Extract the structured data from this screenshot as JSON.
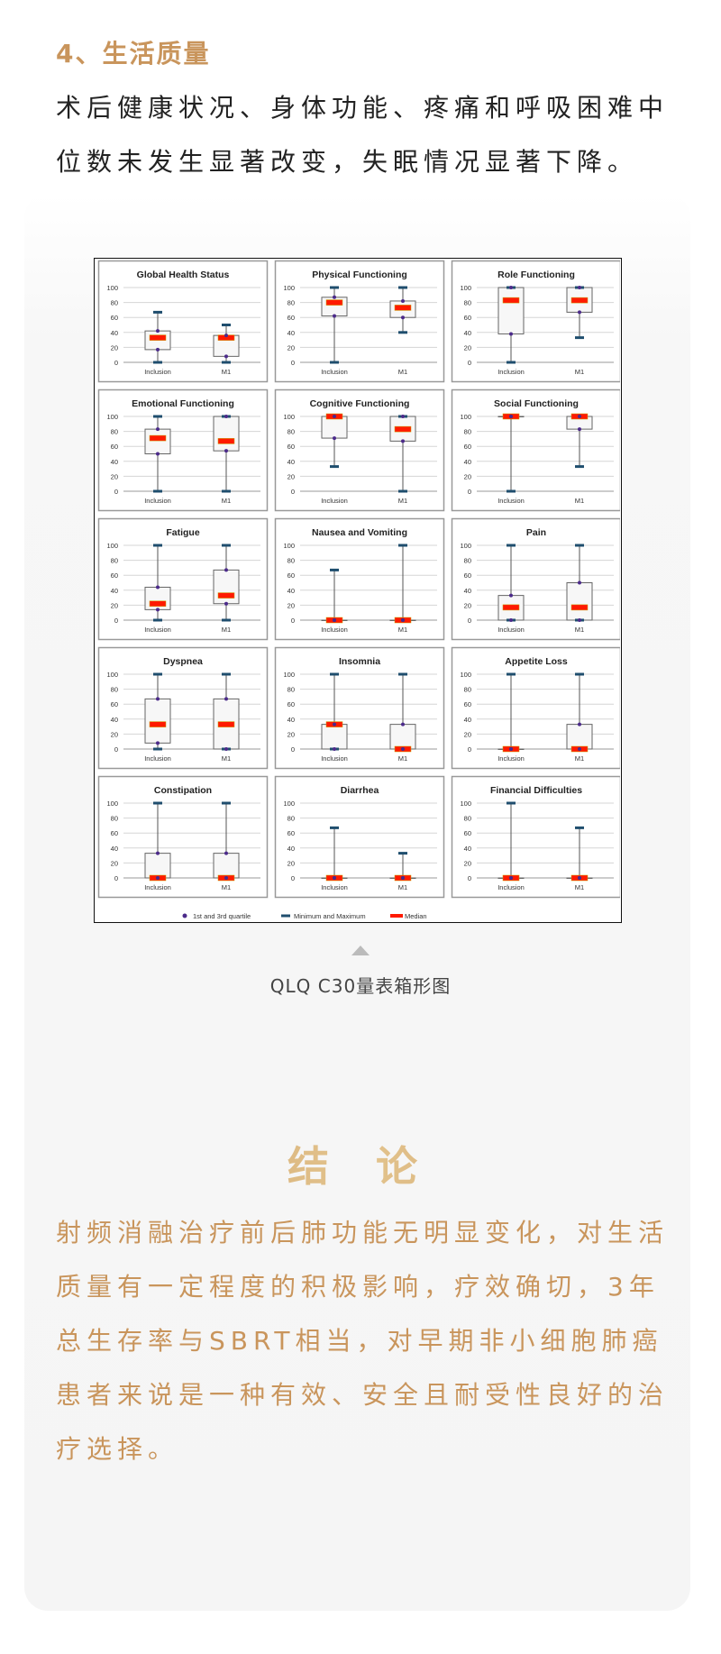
{
  "section": {
    "heading": "4、生活质量",
    "paragraph": "术后健康状况、身体功能、疼痛和呼吸困难中位数未发生显著改变，失眠情况显著下降。"
  },
  "figure": {
    "caption": "QLQ C30量表箱形图"
  },
  "conclusion": {
    "title": "结 论",
    "paragraph": "射频消融治疗前后肺功能无明显变化，对生活质量有一定程度的积极影响，疗效确切，3年总生存率与SBRT相当，对早期非小细胞肺癌患者来说是一种有效、安全且耐受性良好的治疗选择。"
  },
  "colors": {
    "accent": "#c9955c",
    "median": "#ff1a00",
    "quartile": "#4b2a8a",
    "minmax": "#1f4e6e"
  },
  "chart_data": {
    "type": "box",
    "categories": [
      "Inclusion",
      "M1"
    ],
    "ylim": [
      0,
      100
    ],
    "yticks": [
      0,
      20,
      40,
      60,
      80,
      100
    ],
    "grid": true,
    "legend": {
      "placement": "bottom",
      "entries": [
        "1st and 3rd quartile",
        "Minimum and Maximum",
        "Median"
      ]
    },
    "panels": [
      {
        "title": "Global Health Status",
        "boxes": [
          {
            "min": 0,
            "q1": 17,
            "median": 33,
            "q3": 42,
            "max": 67
          },
          {
            "min": 0,
            "q1": 8,
            "median": 33,
            "q3": 36,
            "max": 50
          }
        ]
      },
      {
        "title": "Physical Functioning",
        "boxes": [
          {
            "min": 0,
            "q1": 62,
            "median": 80,
            "q3": 87,
            "max": 100
          },
          {
            "min": 40,
            "q1": 60,
            "median": 73,
            "q3": 82,
            "max": 100
          }
        ]
      },
      {
        "title": "Role Functioning",
        "boxes": [
          {
            "min": 0,
            "q1": 38,
            "median": 83,
            "q3": 100,
            "max": 100
          },
          {
            "min": 33,
            "q1": 67,
            "median": 83,
            "q3": 100,
            "max": 100
          }
        ]
      },
      {
        "title": "Emotional Functioning",
        "boxes": [
          {
            "min": 0,
            "q1": 50,
            "median": 71,
            "q3": 83,
            "max": 100
          },
          {
            "min": 0,
            "q1": 54,
            "median": 67,
            "q3": 100,
            "max": 100
          }
        ]
      },
      {
        "title": "Cognitive Functioning",
        "boxes": [
          {
            "min": 33,
            "q1": 71,
            "median": 100,
            "q3": 100,
            "max": 100
          },
          {
            "min": 0,
            "q1": 67,
            "median": 83,
            "q3": 100,
            "max": 100
          }
        ]
      },
      {
        "title": "Social Functioning",
        "boxes": [
          {
            "min": 0,
            "q1": 100,
            "median": 100,
            "q3": 100,
            "max": 100
          },
          {
            "min": 33,
            "q1": 83,
            "median": 100,
            "q3": 100,
            "max": 100
          }
        ]
      },
      {
        "title": "Fatigue",
        "boxes": [
          {
            "min": 0,
            "q1": 14,
            "median": 22,
            "q3": 44,
            "max": 100
          },
          {
            "min": 0,
            "q1": 22,
            "median": 33,
            "q3": 67,
            "max": 100
          }
        ]
      },
      {
        "title": "Nausea and Vomiting",
        "boxes": [
          {
            "min": 0,
            "q1": 0,
            "median": 0,
            "q3": 0,
            "max": 67
          },
          {
            "min": 0,
            "q1": 0,
            "median": 0,
            "q3": 0,
            "max": 100
          }
        ]
      },
      {
        "title": "Pain",
        "boxes": [
          {
            "min": 0,
            "q1": 0,
            "median": 17,
            "q3": 33,
            "max": 100
          },
          {
            "min": 0,
            "q1": 0,
            "median": 17,
            "q3": 50,
            "max": 100
          }
        ]
      },
      {
        "title": "Dyspnea",
        "boxes": [
          {
            "min": 0,
            "q1": 8,
            "median": 33,
            "q3": 67,
            "max": 100
          },
          {
            "min": 0,
            "q1": 0,
            "median": 33,
            "q3": 67,
            "max": 100
          }
        ]
      },
      {
        "title": "Insomnia",
        "boxes": [
          {
            "min": 0,
            "q1": 0,
            "median": 33,
            "q3": 33,
            "max": 100
          },
          {
            "min": 0,
            "q1": 0,
            "median": 0,
            "q3": 33,
            "max": 100
          }
        ]
      },
      {
        "title": "Appetite Loss",
        "boxes": [
          {
            "min": 0,
            "q1": 0,
            "median": 0,
            "q3": 0,
            "max": 100
          },
          {
            "min": 0,
            "q1": 0,
            "median": 0,
            "q3": 33,
            "max": 100
          }
        ]
      },
      {
        "title": "Constipation",
        "boxes": [
          {
            "min": 0,
            "q1": 0,
            "median": 0,
            "q3": 33,
            "max": 100
          },
          {
            "min": 0,
            "q1": 0,
            "median": 0,
            "q3": 33,
            "max": 100
          }
        ]
      },
      {
        "title": "Diarrhea",
        "boxes": [
          {
            "min": 0,
            "q1": 0,
            "median": 0,
            "q3": 0,
            "max": 67
          },
          {
            "min": 0,
            "q1": 0,
            "median": 0,
            "q3": 0,
            "max": 33
          }
        ]
      },
      {
        "title": "Financial Difficulties",
        "boxes": [
          {
            "min": 0,
            "q1": 0,
            "median": 0,
            "q3": 0,
            "max": 100
          },
          {
            "min": 0,
            "q1": 0,
            "median": 0,
            "q3": 0,
            "max": 67
          }
        ]
      }
    ]
  }
}
